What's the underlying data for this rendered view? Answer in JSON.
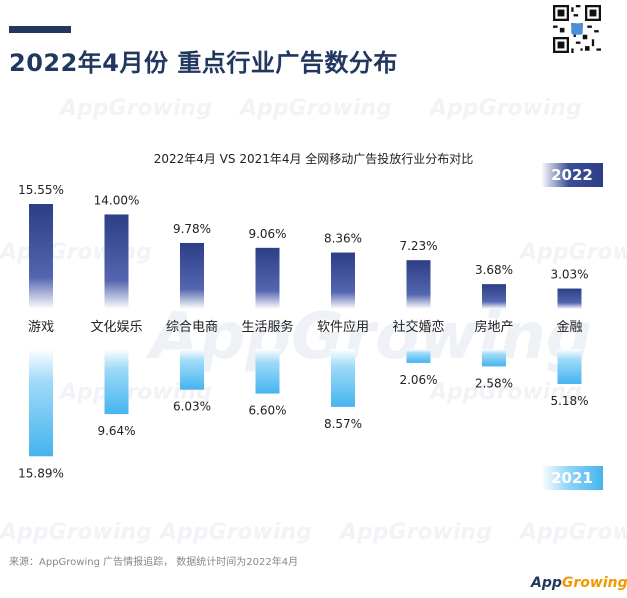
{
  "header": {
    "title": "2022年4月份 重点行业广告数分布"
  },
  "watermark_text": "AppGrowing",
  "chart_data": {
    "type": "bar",
    "title": "2022年4月 VS 2021年4月 全网移动广告投放行业分布对比",
    "categories": [
      "游戏",
      "文化娱乐",
      "综合电商",
      "生活服务",
      "软件应用",
      "社交婚恋",
      "房地产",
      "金融"
    ],
    "series": [
      {
        "name": "2022",
        "values": [
          15.55,
          14.0,
          9.78,
          9.06,
          8.36,
          7.23,
          3.68,
          3.03
        ],
        "labels": [
          "15.55%",
          "14.00%",
          "9.78%",
          "9.06%",
          "8.36%",
          "7.23%",
          "3.68%",
          "3.03%"
        ],
        "color": "#2c3e85"
      },
      {
        "name": "2021",
        "values": [
          15.89,
          9.64,
          6.03,
          6.6,
          8.57,
          2.06,
          2.58,
          5.18
        ],
        "labels": [
          "15.89%",
          "9.64%",
          "6.03%",
          "6.60%",
          "8.57%",
          "2.06%",
          "2.58%",
          "5.18%"
        ],
        "color": "#45b4ef"
      }
    ],
    "legend_placement": "right",
    "grid": false
  },
  "footer": {
    "source": "来源：AppGrowing 广告情报追踪， 数据统计时间为2022年4月",
    "logo_main": "App",
    "logo_accent": "Growing"
  }
}
